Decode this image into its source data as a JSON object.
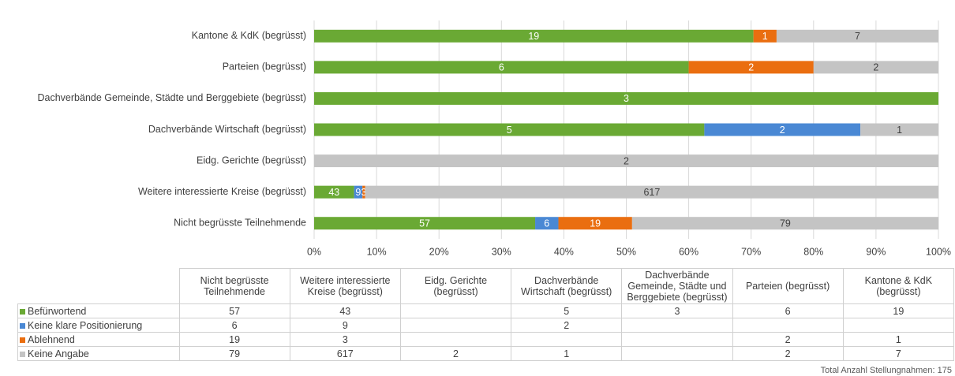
{
  "chart_data": {
    "type": "bar",
    "orientation": "horizontal",
    "stacking": "percent",
    "categories": [
      "Nicht begrüsste Teilnehmende",
      "Weitere interessierte Kreise (begrüsst)",
      "Eidg. Gerichte (begrüsst)",
      "Dachverbände Wirtschaft (begrüsst)",
      "Dachverbände Gemeinde, Städte und Berggebiete (begrüsst)",
      "Parteien (begrüsst)",
      "Kantone & KdK (begrüsst)"
    ],
    "series": [
      {
        "name": "Befürwortend",
        "color": "#6aa934",
        "values": [
          57,
          43,
          null,
          5,
          3,
          6,
          19
        ]
      },
      {
        "name": "Keine klare Positionierung",
        "color": "#4a88d4",
        "values": [
          6,
          9,
          null,
          2,
          null,
          null,
          null
        ]
      },
      {
        "name": "Ablehnend",
        "color": "#ea6e10",
        "values": [
          19,
          3,
          null,
          null,
          null,
          2,
          1
        ]
      },
      {
        "name": "Keine Angabe",
        "color": "#c4c4c4",
        "values": [
          79,
          617,
          2,
          1,
          null,
          2,
          7
        ]
      }
    ],
    "xlim": [
      0,
      100
    ],
    "xticks": [
      {
        "value": 0,
        "label": "0%"
      },
      {
        "value": 10,
        "label": "10%"
      },
      {
        "value": 20,
        "label": "20%"
      },
      {
        "value": 30,
        "label": "30%"
      },
      {
        "value": 40,
        "label": "40%"
      },
      {
        "value": 50,
        "label": "50%"
      },
      {
        "value": 60,
        "label": "60%"
      },
      {
        "value": 70,
        "label": "70%"
      },
      {
        "value": 80,
        "label": "80%"
      },
      {
        "value": 90,
        "label": "90%"
      },
      {
        "value": 100,
        "label": "100%"
      }
    ],
    "grid": true,
    "data_table": true,
    "footnote": "Total Anzahl Stellungnahmen: 175"
  }
}
